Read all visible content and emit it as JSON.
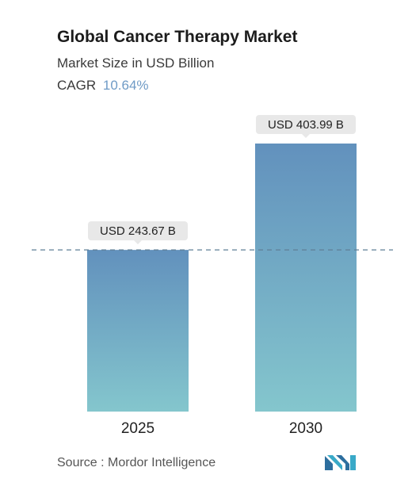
{
  "title": "Global Cancer Therapy Market",
  "subtitle": "Market Size in USD Billion",
  "cagr_label": "CAGR",
  "cagr_value": "10.64%",
  "source_text": "Source :  Mordor Intelligence",
  "colors": {
    "bar_top": "#6291bd",
    "bar_bottom": "#84c6cd",
    "label_bg": "#e8e8e8",
    "dashed_line": "#5f7f96"
  },
  "logo_icon": "mordor-intelligence-logo-icon",
  "chart_data": {
    "type": "bar",
    "title": "Global Cancer Therapy Market",
    "subtitle": "Market Size in USD Billion",
    "categories": [
      "2025",
      "2030"
    ],
    "values": [
      243.67,
      403.99
    ],
    "value_labels": [
      "USD 243.67 B",
      "USD 403.99 B"
    ],
    "unit": "USD Billion",
    "reference_line_value": 243.67,
    "ylim": [
      0,
      403.99
    ],
    "grid": false
  }
}
